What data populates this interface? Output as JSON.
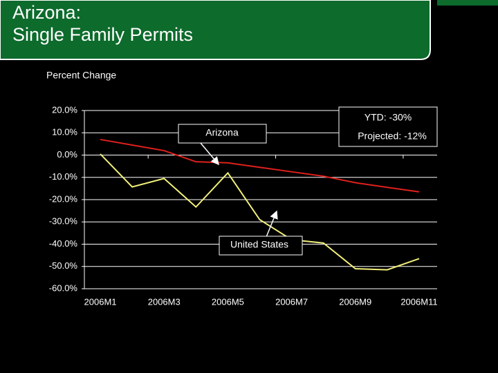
{
  "title": [
    "Arizona:",
    "Single Family Permits"
  ],
  "chart_data": {
    "type": "line",
    "ylabel": "Percent Change",
    "categories": [
      "2006M1",
      null,
      "2006M3",
      null,
      "2006M5",
      null,
      "2006M7",
      null,
      "2006M9",
      null,
      "2006M11"
    ],
    "series": [
      {
        "color": "#e0201c",
        "values": [
          7,
          4.5,
          2,
          -3,
          -3.5,
          -5.5,
          -7.5,
          -9.5,
          -12.4,
          -14.5,
          -16.5
        ]
      },
      {
        "color": "#f2f07a",
        "values": [
          0.5,
          -14.3,
          -10.5,
          -23.3,
          -8,
          -29,
          -38,
          -39.5,
          -51,
          -51.5,
          -46.5
        ]
      }
    ],
    "ylim": [
      -60,
      20
    ],
    "yticks": [
      {
        "value": 20,
        "label": "20.0%"
      },
      {
        "value": 10,
        "label": "10.0%"
      },
      {
        "value": 0,
        "label": "0.0%"
      },
      {
        "value": -10,
        "label": "-10.0%"
      },
      {
        "value": -20,
        "label": "-20.0%"
      },
      {
        "value": -30,
        "label": "-30.0%"
      },
      {
        "value": -40,
        "label": "-40.0%"
      },
      {
        "value": -50,
        "label": "-50.0%"
      },
      {
        "value": -60,
        "label": "-60.0%"
      }
    ],
    "grid": true,
    "annotations": [
      "Arizona",
      "United States",
      "YTD: -30%",
      "Projected: -12%"
    ]
  }
}
